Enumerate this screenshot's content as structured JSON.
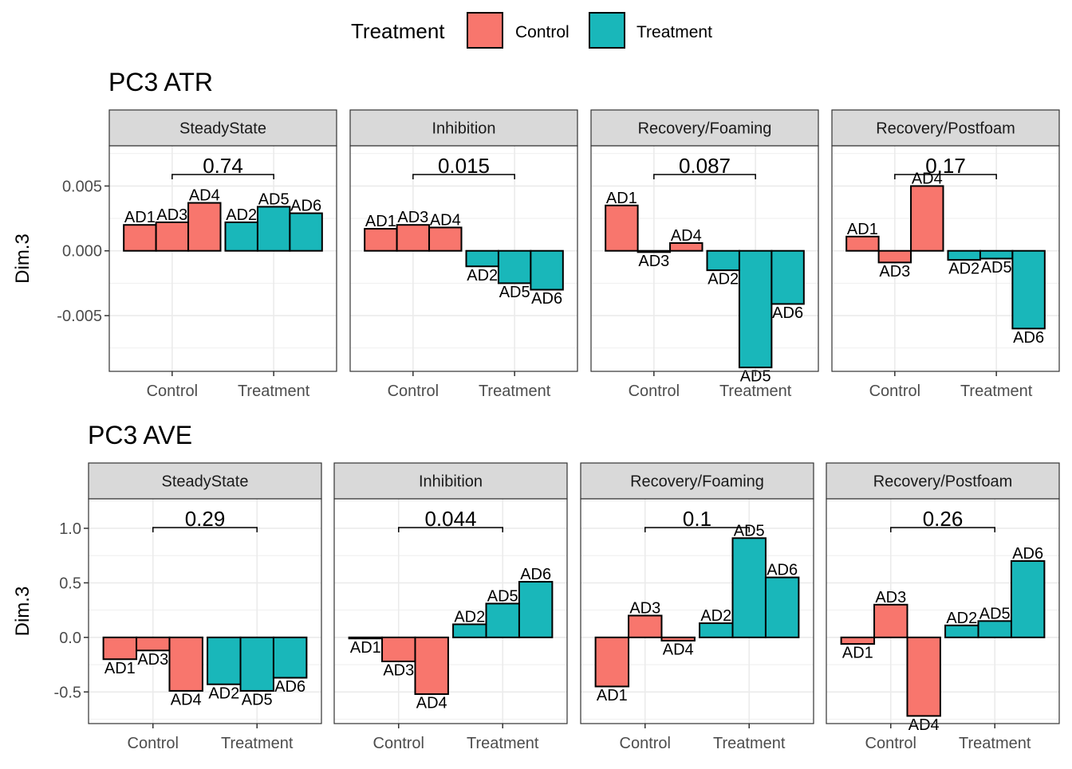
{
  "legend": {
    "title": "Treatment",
    "entries": [
      {
        "label": "Control",
        "color": "#F8766D"
      },
      {
        "label": "Treatment",
        "color": "#19B7BA"
      }
    ]
  },
  "chart_data": [
    {
      "type": "bar",
      "title": "PC3 ATR",
      "ylabel": "Dim.3",
      "ylim": [
        -0.0093,
        0.0081
      ],
      "yticks": [
        -0.005,
        0.0,
        0.005
      ],
      "ytick_labels": [
        "-0.005",
        "0.000",
        "0.005"
      ],
      "categories": [
        "Control",
        "Treatment"
      ],
      "grid": true,
      "legend_position": "top",
      "facets": [
        {
          "name": "SteadyState",
          "pvalue": "0.74",
          "bars": [
            {
              "label": "AD1",
              "group": "Control",
              "value": 0.002
            },
            {
              "label": "AD3",
              "group": "Control",
              "value": 0.0022
            },
            {
              "label": "AD4",
              "group": "Control",
              "value": 0.0037
            },
            {
              "label": "AD2",
              "group": "Treatment",
              "value": 0.0022
            },
            {
              "label": "AD5",
              "group": "Treatment",
              "value": 0.0034
            },
            {
              "label": "AD6",
              "group": "Treatment",
              "value": 0.0029
            }
          ]
        },
        {
          "name": "Inhibition",
          "pvalue": "0.015",
          "bars": [
            {
              "label": "AD1",
              "group": "Control",
              "value": 0.0017
            },
            {
              "label": "AD3",
              "group": "Control",
              "value": 0.002
            },
            {
              "label": "AD4",
              "group": "Control",
              "value": 0.0018
            },
            {
              "label": "AD2",
              "group": "Treatment",
              "value": -0.0012
            },
            {
              "label": "AD5",
              "group": "Treatment",
              "value": -0.0025
            },
            {
              "label": "AD6",
              "group": "Treatment",
              "value": -0.003
            }
          ]
        },
        {
          "name": "Recovery/Foaming",
          "pvalue": "0.087",
          "bars": [
            {
              "label": "AD1",
              "group": "Control",
              "value": 0.0035
            },
            {
              "label": "AD3",
              "group": "Control",
              "value": -0.0001
            },
            {
              "label": "AD4",
              "group": "Control",
              "value": 0.0006
            },
            {
              "label": "AD2",
              "group": "Treatment",
              "value": -0.0015
            },
            {
              "label": "AD5",
              "group": "Treatment",
              "value": -0.009
            },
            {
              "label": "AD6",
              "group": "Treatment",
              "value": -0.0041
            }
          ]
        },
        {
          "name": "Recovery/Postfoam",
          "pvalue": "0.17",
          "bars": [
            {
              "label": "AD1",
              "group": "Control",
              "value": 0.0011
            },
            {
              "label": "AD3",
              "group": "Control",
              "value": -0.0009
            },
            {
              "label": "AD4",
              "group": "Control",
              "value": 0.005
            },
            {
              "label": "AD2",
              "group": "Treatment",
              "value": -0.0007
            },
            {
              "label": "AD5",
              "group": "Treatment",
              "value": -0.0006
            },
            {
              "label": "AD6",
              "group": "Treatment",
              "value": -0.006
            }
          ]
        }
      ]
    },
    {
      "type": "bar",
      "title": "PC3 AVE",
      "ylabel": "Dim.3",
      "ylim": [
        -0.79,
        1.27
      ],
      "yticks": [
        -0.5,
        0.0,
        0.5,
        1.0
      ],
      "ytick_labels": [
        "-0.5",
        "0.0",
        "0.5",
        "1.0"
      ],
      "categories": [
        "Control",
        "Treatment"
      ],
      "grid": true,
      "legend_position": "top",
      "facets": [
        {
          "name": "SteadyState",
          "pvalue": "0.29",
          "bars": [
            {
              "label": "AD1",
              "group": "Control",
              "value": -0.2
            },
            {
              "label": "AD3",
              "group": "Control",
              "value": -0.12
            },
            {
              "label": "AD4",
              "group": "Control",
              "value": -0.49
            },
            {
              "label": "AD2",
              "group": "Treatment",
              "value": -0.43
            },
            {
              "label": "AD5",
              "group": "Treatment",
              "value": -0.49
            },
            {
              "label": "AD6",
              "group": "Treatment",
              "value": -0.37
            }
          ]
        },
        {
          "name": "Inhibition",
          "pvalue": "0.044",
          "bars": [
            {
              "label": "AD1",
              "group": "Control",
              "value": -0.01
            },
            {
              "label": "AD3",
              "group": "Control",
              "value": -0.22
            },
            {
              "label": "AD4",
              "group": "Control",
              "value": -0.52
            },
            {
              "label": "AD2",
              "group": "Treatment",
              "value": 0.12
            },
            {
              "label": "AD5",
              "group": "Treatment",
              "value": 0.31
            },
            {
              "label": "AD6",
              "group": "Treatment",
              "value": 0.51
            }
          ]
        },
        {
          "name": "Recovery/Foaming",
          "pvalue": "0.1",
          "bars": [
            {
              "label": "AD1",
              "group": "Control",
              "value": -0.45
            },
            {
              "label": "AD3",
              "group": "Control",
              "value": 0.2
            },
            {
              "label": "AD4",
              "group": "Control",
              "value": -0.03
            },
            {
              "label": "AD2",
              "group": "Treatment",
              "value": 0.13
            },
            {
              "label": "AD5",
              "group": "Treatment",
              "value": 0.91
            },
            {
              "label": "AD6",
              "group": "Treatment",
              "value": 0.55
            }
          ]
        },
        {
          "name": "Recovery/Postfoam",
          "pvalue": "0.26",
          "bars": [
            {
              "label": "AD1",
              "group": "Control",
              "value": -0.06
            },
            {
              "label": "AD3",
              "group": "Control",
              "value": 0.3
            },
            {
              "label": "AD4",
              "group": "Control",
              "value": -0.72
            },
            {
              "label": "AD2",
              "group": "Treatment",
              "value": 0.11
            },
            {
              "label": "AD5",
              "group": "Treatment",
              "value": 0.15
            },
            {
              "label": "AD6",
              "group": "Treatment",
              "value": 0.7
            }
          ]
        }
      ]
    }
  ]
}
